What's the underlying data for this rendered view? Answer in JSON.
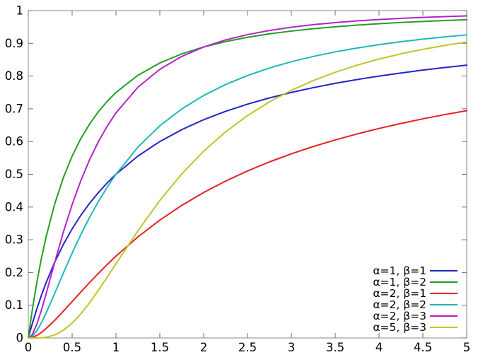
{
  "style": {
    "background": "#ffffff",
    "border_color": "#8a8a8a",
    "tick_color": "#6e6e6e",
    "label_color": "#000000"
  },
  "chart_data": {
    "type": "line",
    "title": "",
    "xlabel": "",
    "ylabel": "",
    "xlim": [
      0,
      5
    ],
    "ylim": [
      0,
      1
    ],
    "grid": false,
    "legend_position": "inside-bottom-right",
    "x_ticks": {
      "values": [
        0,
        0.5,
        1,
        1.5,
        2,
        2.5,
        3,
        3.5,
        4,
        4.5,
        5
      ],
      "labels": [
        "0",
        "0.5",
        "1",
        "1.5",
        "2",
        "2.5",
        "3",
        "3.5",
        "4",
        "4.5",
        "5"
      ]
    },
    "y_ticks": {
      "values": [
        0,
        0.1,
        0.2,
        0.3,
        0.4,
        0.5,
        0.6,
        0.7,
        0.8,
        0.9,
        1
      ],
      "labels": [
        "0",
        "0.1",
        "0.2",
        "0.3",
        "0.4",
        "0.5",
        "0.6",
        "0.7",
        "0.8",
        "0.9",
        "1"
      ]
    },
    "x": [
      0,
      0.025,
      0.05,
      0.1,
      0.15,
      0.2,
      0.3,
      0.4,
      0.5,
      0.6,
      0.7,
      0.8,
      0.9,
      1,
      1.25,
      1.5,
      1.75,
      2,
      2.25,
      2.5,
      2.75,
      3,
      3.25,
      3.5,
      3.75,
      4,
      4.25,
      4.5,
      4.75,
      5
    ],
    "series": [
      {
        "label": "α=1, β=1",
        "color": "#2424c8",
        "values": [
          0,
          0.0244,
          0.0476,
          0.0909,
          0.1304,
          0.1667,
          0.2308,
          0.2857,
          0.3333,
          0.375,
          0.4118,
          0.4444,
          0.4737,
          0.5,
          0.5556,
          0.6,
          0.6364,
          0.6667,
          0.6923,
          0.7143,
          0.7333,
          0.75,
          0.7647,
          0.7778,
          0.7895,
          0.8,
          0.8095,
          0.8182,
          0.8261,
          0.8333
        ]
      },
      {
        "label": "α=1, β=2",
        "color": "#21a021",
        "values": [
          0,
          0.0482,
          0.093,
          0.1736,
          0.2439,
          0.3056,
          0.4083,
          0.4898,
          0.5556,
          0.6094,
          0.654,
          0.6914,
          0.723,
          0.75,
          0.8025,
          0.84,
          0.8678,
          0.8889,
          0.9053,
          0.9184,
          0.9289,
          0.9375,
          0.9446,
          0.9506,
          0.9557,
          0.96,
          0.9637,
          0.9669,
          0.9698,
          0.9722
        ]
      },
      {
        "label": "α=2, β=1",
        "color": "#e32222",
        "values": [
          0,
          0.0006,
          0.0023,
          0.0083,
          0.017,
          0.0278,
          0.0533,
          0.0816,
          0.1111,
          0.1406,
          0.1696,
          0.1975,
          0.2244,
          0.25,
          0.3086,
          0.36,
          0.405,
          0.4444,
          0.4793,
          0.5102,
          0.5378,
          0.5625,
          0.5848,
          0.6049,
          0.6233,
          0.64,
          0.6553,
          0.6694,
          0.6824,
          0.6944
        ]
      },
      {
        "label": "α=2, β=2",
        "color": "#1eb8b8",
        "values": [
          0,
          0.0018,
          0.0066,
          0.0233,
          0.0466,
          0.0741,
          0.1352,
          0.1983,
          0.2593,
          0.3164,
          0.369,
          0.417,
          0.4606,
          0.5,
          0.583,
          0.648,
          0.6995,
          0.7407,
          0.7742,
          0.8017,
          0.8246,
          0.8438,
          0.86,
          0.8738,
          0.8857,
          0.896,
          0.905,
          0.9128,
          0.9198,
          0.9259
        ]
      },
      {
        "label": "α=2, β=3",
        "color": "#b622c8",
        "values": [
          0,
          0.0035,
          0.0128,
          0.0438,
          0.0852,
          0.1319,
          0.2297,
          0.3232,
          0.4074,
          0.4812,
          0.545,
          0.5999,
          0.6471,
          0.6875,
          0.7659,
          0.8208,
          0.8601,
          0.8889,
          0.9104,
          0.9267,
          0.9393,
          0.9492,
          0.9571,
          0.9634,
          0.9686,
          0.9728,
          0.9763,
          0.9792,
          0.9817,
          0.9838
        ]
      },
      {
        "label": "α=5, β=3",
        "color": "#c3c32a",
        "values": [
          0,
          0,
          0,
          0.0001,
          0.0006,
          0.002,
          0.009,
          0.0233,
          0.0453,
          0.074,
          0.1081,
          0.1458,
          0.1857,
          0.2266,
          0.3273,
          0.4199,
          0.5011,
          0.5706,
          0.6295,
          0.6792,
          0.7211,
          0.7564,
          0.7863,
          0.8117,
          0.8334,
          0.852,
          0.868,
          0.8818,
          0.8937,
          0.9042
        ]
      }
    ]
  }
}
